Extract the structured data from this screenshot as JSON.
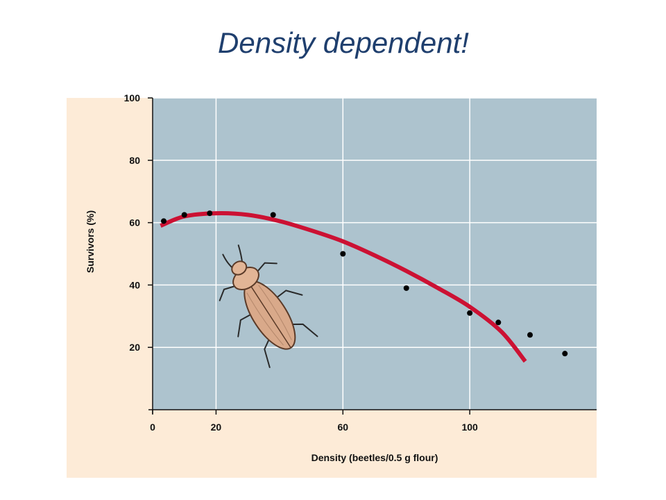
{
  "slide": {
    "title": "Density dependent!"
  },
  "chart_data": {
    "type": "scatter",
    "title": "",
    "xlabel": "Density (beetles/0.5 g flour)",
    "ylabel": "Survivors (%)",
    "xlim": [
      0,
      140
    ],
    "ylim": [
      0,
      100
    ],
    "xticks": [
      0,
      20,
      60,
      100
    ],
    "yticks": [
      20,
      40,
      60,
      80,
      100
    ],
    "grid": true,
    "series": [
      {
        "kind": "points",
        "x": [
          3.5,
          10,
          18,
          38,
          60,
          80,
          100,
          109,
          119,
          130
        ],
        "y": [
          60.5,
          62.5,
          63,
          62.5,
          50,
          39,
          31,
          28,
          24,
          18
        ],
        "color": "#000000"
      },
      {
        "kind": "fitted-curve",
        "x": [
          2.5,
          10,
          20,
          30,
          40,
          50,
          60,
          70,
          80,
          90,
          100,
          110,
          117.5
        ],
        "y": [
          59,
          62,
          63,
          62.5,
          60.5,
          57.5,
          54,
          49.5,
          44.5,
          39,
          33,
          25,
          15.5
        ],
        "color": "#cc1133"
      }
    ],
    "colors": {
      "plot_background": "#adc3ce",
      "panel_background": "#fdebd7",
      "grid": "#ffffff",
      "curve": "#cc1133"
    },
    "illustration": "flour-beetle-icon"
  }
}
